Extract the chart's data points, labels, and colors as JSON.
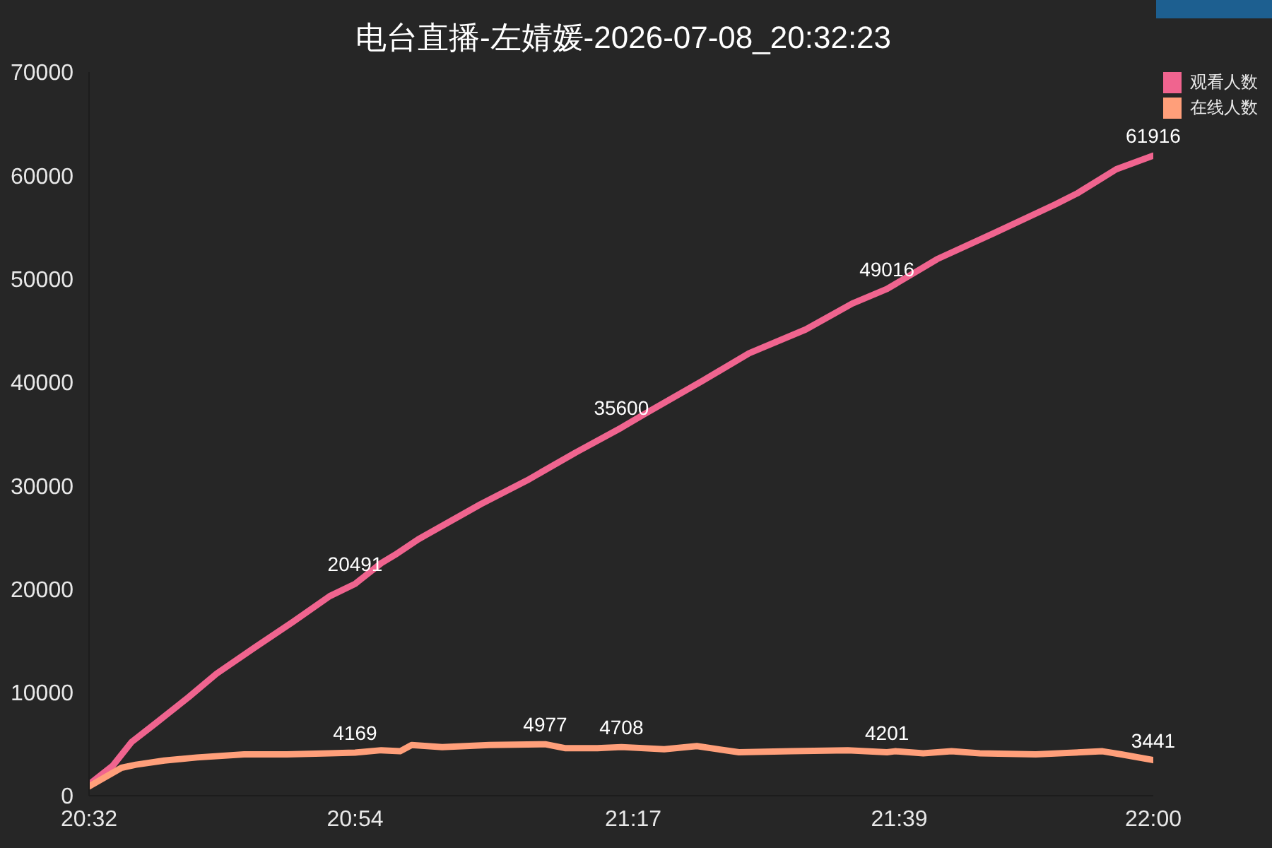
{
  "chart_data": {
    "type": "line",
    "title": "电台直播-左婧媛-2026-07-08_20:32:23",
    "series": [
      {
        "name": "观看人数",
        "color": "#f0648f",
        "x": [
          20.53333,
          20.566,
          20.592,
          20.625,
          20.67,
          20.709,
          20.761,
          20.814,
          20.865,
          20.9,
          20.936,
          20.955,
          20.987,
          21.073,
          21.137,
          21.204,
          21.267,
          21.301,
          21.378,
          21.443,
          21.521,
          21.585,
          21.633,
          21.702,
          21.78,
          21.865,
          21.896,
          21.949,
          22
        ],
        "values": [
          1100,
          2900,
          5200,
          7000,
          9500,
          11800,
          14300,
          16800,
          19300,
          20491,
          22500,
          23300,
          24800,
          28200,
          30500,
          33200,
          35600,
          37000,
          40100,
          42800,
          45100,
          47600,
          49016,
          51900,
          54400,
          57200,
          58300,
          60600,
          61916
        ],
        "value_labels": [
          null,
          null,
          null,
          null,
          null,
          null,
          null,
          null,
          null,
          "20491",
          null,
          null,
          null,
          null,
          null,
          null,
          "35600",
          null,
          null,
          null,
          null,
          null,
          "49016",
          null,
          null,
          null,
          null,
          null,
          "61916"
        ]
      },
      {
        "name": "在线人数",
        "color": "#ff9f7a",
        "x": [
          20.53333,
          20.578,
          20.598,
          20.637,
          20.682,
          20.747,
          20.806,
          20.865,
          20.9,
          20.936,
          20.962,
          20.978,
          21.02,
          21.085,
          21.162,
          21.189,
          21.234,
          21.267,
          21.326,
          21.371,
          21.429,
          21.501,
          21.579,
          21.633,
          21.644,
          21.683,
          21.722,
          21.761,
          21.838,
          21.93,
          21.956,
          22
        ],
        "values": [
          900,
          2700,
          3000,
          3400,
          3700,
          4000,
          4000,
          4100,
          4169,
          4400,
          4300,
          4900,
          4700,
          4900,
          4977,
          4600,
          4600,
          4708,
          4500,
          4800,
          4200,
          4300,
          4400,
          4201,
          4300,
          4100,
          4300,
          4100,
          4000,
          4300,
          4000,
          3441
        ],
        "value_labels": [
          null,
          null,
          null,
          null,
          null,
          null,
          null,
          null,
          "4169",
          null,
          null,
          null,
          null,
          null,
          "4977",
          null,
          null,
          "4708",
          null,
          null,
          null,
          null,
          null,
          "4201",
          null,
          null,
          null,
          null,
          null,
          null,
          null,
          "3441"
        ]
      }
    ],
    "xlim": [
      20.53333,
      22
    ],
    "xticks": [
      {
        "value": 20.53333,
        "label": "20:32"
      },
      {
        "value": 20.9,
        "label": "20:54"
      },
      {
        "value": 21.28333,
        "label": "21:17"
      },
      {
        "value": 21.65,
        "label": "21:39"
      },
      {
        "value": 22,
        "label": "22:00"
      }
    ],
    "ylim": [
      0,
      70000
    ],
    "yticks": [
      0,
      10000,
      20000,
      30000,
      40000,
      50000,
      60000,
      70000
    ],
    "legend": "top right",
    "line_style": "solid"
  }
}
